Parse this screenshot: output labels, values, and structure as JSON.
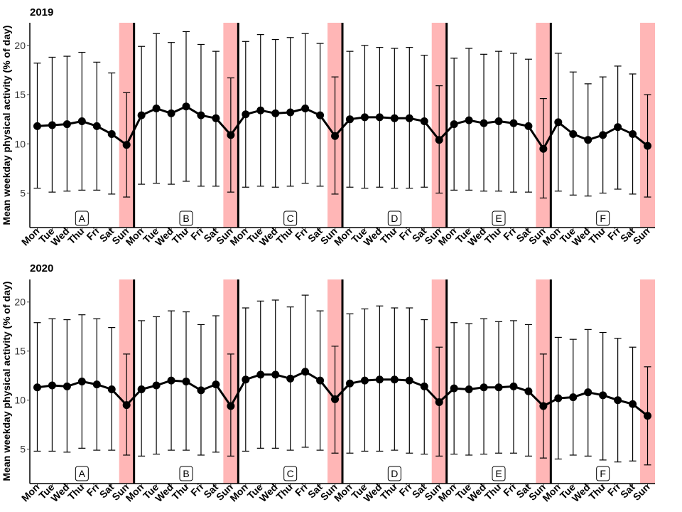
{
  "chart_data": {
    "type": "line",
    "ylabel": "Mean weekday physical activity (% of day)",
    "ylim": [
      1.5,
      22.3
    ],
    "yticks": [
      5,
      10,
      15,
      20
    ],
    "day_labels": [
      "Mon",
      "Tue",
      "Wed",
      "Thu",
      "Fri",
      "Sat",
      "Sun"
    ],
    "weeks": [
      "A",
      "B",
      "C",
      "D",
      "E",
      "F"
    ],
    "highlight_color": "#ffb6b6",
    "line_color": "#000000",
    "panels": [
      {
        "title": "2019",
        "values": [
          11.8,
          11.9,
          12.0,
          12.3,
          11.8,
          11.0,
          9.9,
          12.9,
          13.6,
          13.1,
          13.8,
          12.9,
          12.6,
          10.9,
          13.0,
          13.4,
          13.1,
          13.2,
          13.6,
          12.9,
          10.8,
          12.5,
          12.7,
          12.7,
          12.6,
          12.6,
          12.3,
          10.4,
          12.0,
          12.4,
          12.1,
          12.3,
          12.1,
          11.8,
          9.5,
          12.2,
          11.0,
          10.4,
          10.9,
          11.7,
          11.0,
          9.8
        ],
        "err_lower": [
          5.5,
          5.1,
          5.2,
          5.3,
          5.3,
          4.9,
          4.6,
          5.9,
          6.0,
          5.9,
          6.2,
          5.7,
          5.7,
          5.1,
          5.6,
          5.7,
          5.6,
          5.7,
          6.0,
          5.7,
          4.9,
          5.6,
          5.5,
          5.6,
          5.5,
          5.5,
          5.6,
          5.0,
          5.3,
          5.3,
          5.2,
          5.2,
          5.1,
          5.1,
          4.5,
          5.2,
          4.8,
          4.7,
          5.0,
          5.4,
          4.9,
          4.6
        ],
        "err_upper": [
          18.2,
          18.8,
          18.9,
          19.3,
          18.3,
          17.2,
          15.2,
          19.9,
          21.2,
          20.3,
          21.4,
          20.1,
          19.4,
          16.7,
          20.4,
          21.1,
          20.6,
          20.8,
          21.2,
          20.2,
          16.8,
          19.4,
          20.0,
          19.8,
          19.7,
          19.8,
          19.0,
          15.9,
          18.7,
          19.7,
          19.1,
          19.4,
          19.2,
          18.6,
          14.6,
          19.2,
          17.3,
          16.1,
          16.8,
          17.9,
          17.1,
          15.0
        ]
      },
      {
        "title": "2020",
        "values": [
          11.3,
          11.5,
          11.4,
          11.9,
          11.6,
          11.1,
          9.5,
          11.1,
          11.5,
          12.0,
          11.9,
          11.0,
          11.6,
          9.4,
          12.1,
          12.6,
          12.6,
          12.2,
          12.9,
          12.0,
          10.1,
          11.7,
          12.0,
          12.1,
          12.1,
          12.0,
          11.4,
          9.8,
          11.2,
          11.1,
          11.3,
          11.3,
          11.4,
          10.9,
          9.4,
          10.2,
          10.3,
          10.8,
          10.5,
          10.0,
          9.6,
          8.4
        ],
        "err_lower": [
          4.8,
          4.8,
          4.7,
          5.1,
          4.9,
          4.9,
          4.4,
          4.3,
          4.5,
          4.9,
          4.9,
          4.4,
          4.7,
          4.3,
          4.8,
          5.1,
          5.1,
          4.9,
          5.2,
          4.9,
          4.6,
          4.6,
          4.8,
          4.8,
          4.9,
          4.6,
          4.5,
          4.3,
          4.5,
          4.4,
          4.5,
          4.6,
          4.6,
          4.3,
          4.1,
          4.0,
          4.4,
          4.3,
          3.9,
          3.7,
          3.8,
          3.4
        ],
        "err_upper": [
          17.9,
          18.3,
          18.2,
          18.7,
          18.3,
          17.4,
          14.7,
          18.1,
          18.5,
          19.1,
          19.0,
          17.7,
          18.6,
          14.7,
          19.4,
          20.1,
          20.2,
          19.5,
          20.7,
          19.1,
          15.5,
          18.8,
          19.3,
          19.6,
          19.4,
          19.4,
          18.2,
          15.4,
          17.9,
          17.8,
          18.3,
          18.0,
          18.1,
          17.7,
          14.7,
          16.4,
          16.2,
          17.2,
          16.9,
          16.3,
          15.4,
          13.4
        ]
      }
    ]
  }
}
